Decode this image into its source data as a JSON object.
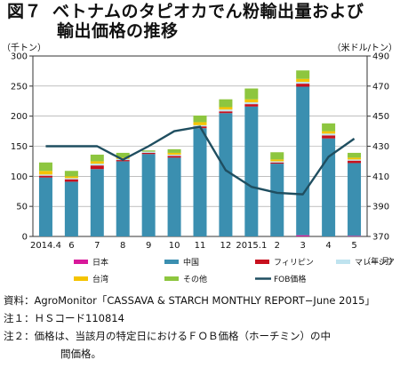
{
  "figure_label": "図７",
  "title_line1": "ベトナムのタピオカでん粉輸出量および",
  "title_line2": "輸出価格の推移",
  "chart_data": {
    "type": "bar",
    "stacked": true,
    "left_axis_unit": "（千トン）",
    "right_axis_unit": "（米ドル/トン）",
    "x_unit": "（年.月）",
    "categories": [
      "2014.4",
      "6",
      "7",
      "8",
      "9",
      "10",
      "11",
      "12",
      "2015.1",
      "2",
      "3",
      "4",
      "5"
    ],
    "ylim_left": [
      0,
      300
    ],
    "yticks_left": [
      0,
      50,
      100,
      150,
      200,
      250,
      300
    ],
    "ylim_right": [
      370,
      490
    ],
    "yticks_right": [
      370,
      390,
      410,
      430,
      450,
      470,
      490
    ],
    "series": [
      {
        "name": "日本",
        "color": "#d8189a",
        "values": [
          0,
          0,
          0,
          0,
          0,
          0,
          0,
          0,
          0,
          0,
          2,
          0,
          1
        ]
      },
      {
        "name": "中国",
        "color": "#3b8fb0",
        "values": [
          98,
          91,
          112,
          125,
          137,
          131,
          180,
          205,
          216,
          121,
          247,
          163,
          121
        ]
      },
      {
        "name": "フィリピン",
        "color": "#c8101e",
        "values": [
          3,
          4,
          6,
          2,
          2,
          3,
          3,
          3,
          4,
          2,
          5,
          5,
          4
        ]
      },
      {
        "name": "マレーシア",
        "color": "#bfe3ef",
        "values": [
          2,
          2,
          3,
          2,
          2,
          2,
          2,
          3,
          3,
          2,
          3,
          3,
          2
        ]
      },
      {
        "name": "台湾",
        "color": "#f5c400",
        "values": [
          6,
          3,
          4,
          2,
          0,
          3,
          5,
          4,
          5,
          3,
          5,
          4,
          3
        ]
      },
      {
        "name": "その他",
        "color": "#8dc63f",
        "values": [
          14,
          9,
          11,
          8,
          2,
          6,
          11,
          13,
          18,
          12,
          14,
          13,
          8
        ]
      }
    ],
    "line": {
      "name": "FOB価格",
      "color": "#1f4e60",
      "values": [
        430,
        430,
        430,
        421,
        430,
        440,
        443,
        414,
        403,
        399,
        398,
        423,
        435
      ]
    }
  },
  "notes": {
    "source_label": "資料：",
    "source_text": "AgroMonitor「CASSAVA & STARCH MONTHLY REPORT−June 2015」",
    "note1_label": "注１：",
    "note1_text": "ＨＳコード110814",
    "note2_label": "注２：",
    "note2_text": "価格は、当該月の特定日におけるＦＯＢ価格（ホーチミン）の中",
    "note2_text_cont": "間価格。"
  }
}
